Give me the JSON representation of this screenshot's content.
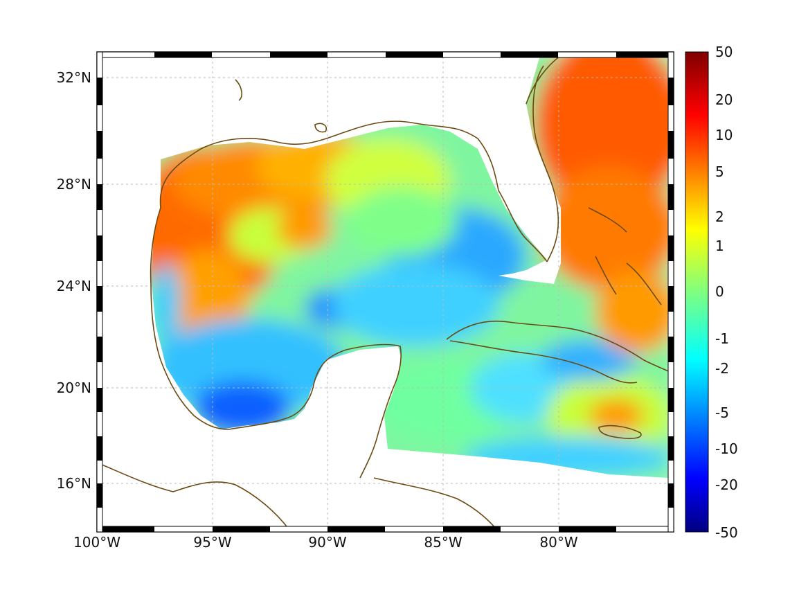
{
  "map": {
    "longitude_ticks": [
      "100°W",
      "95°W",
      "90°W",
      "85°W",
      "80°W"
    ],
    "latitude_ticks": [
      "32°N",
      "28°N",
      "24°N",
      "20°N",
      "16°N"
    ],
    "colorbar": {
      "ticks": [
        "50",
        "20",
        "10",
        "5",
        "2",
        "1",
        "0",
        "-1",
        "-2",
        "-5",
        "-10",
        "-20",
        "-50"
      ],
      "colormap": "jet"
    },
    "colors": {
      "coastline": "#6b4a12",
      "background": "#ffffff",
      "gridline": "#bbbbbb"
    }
  }
}
